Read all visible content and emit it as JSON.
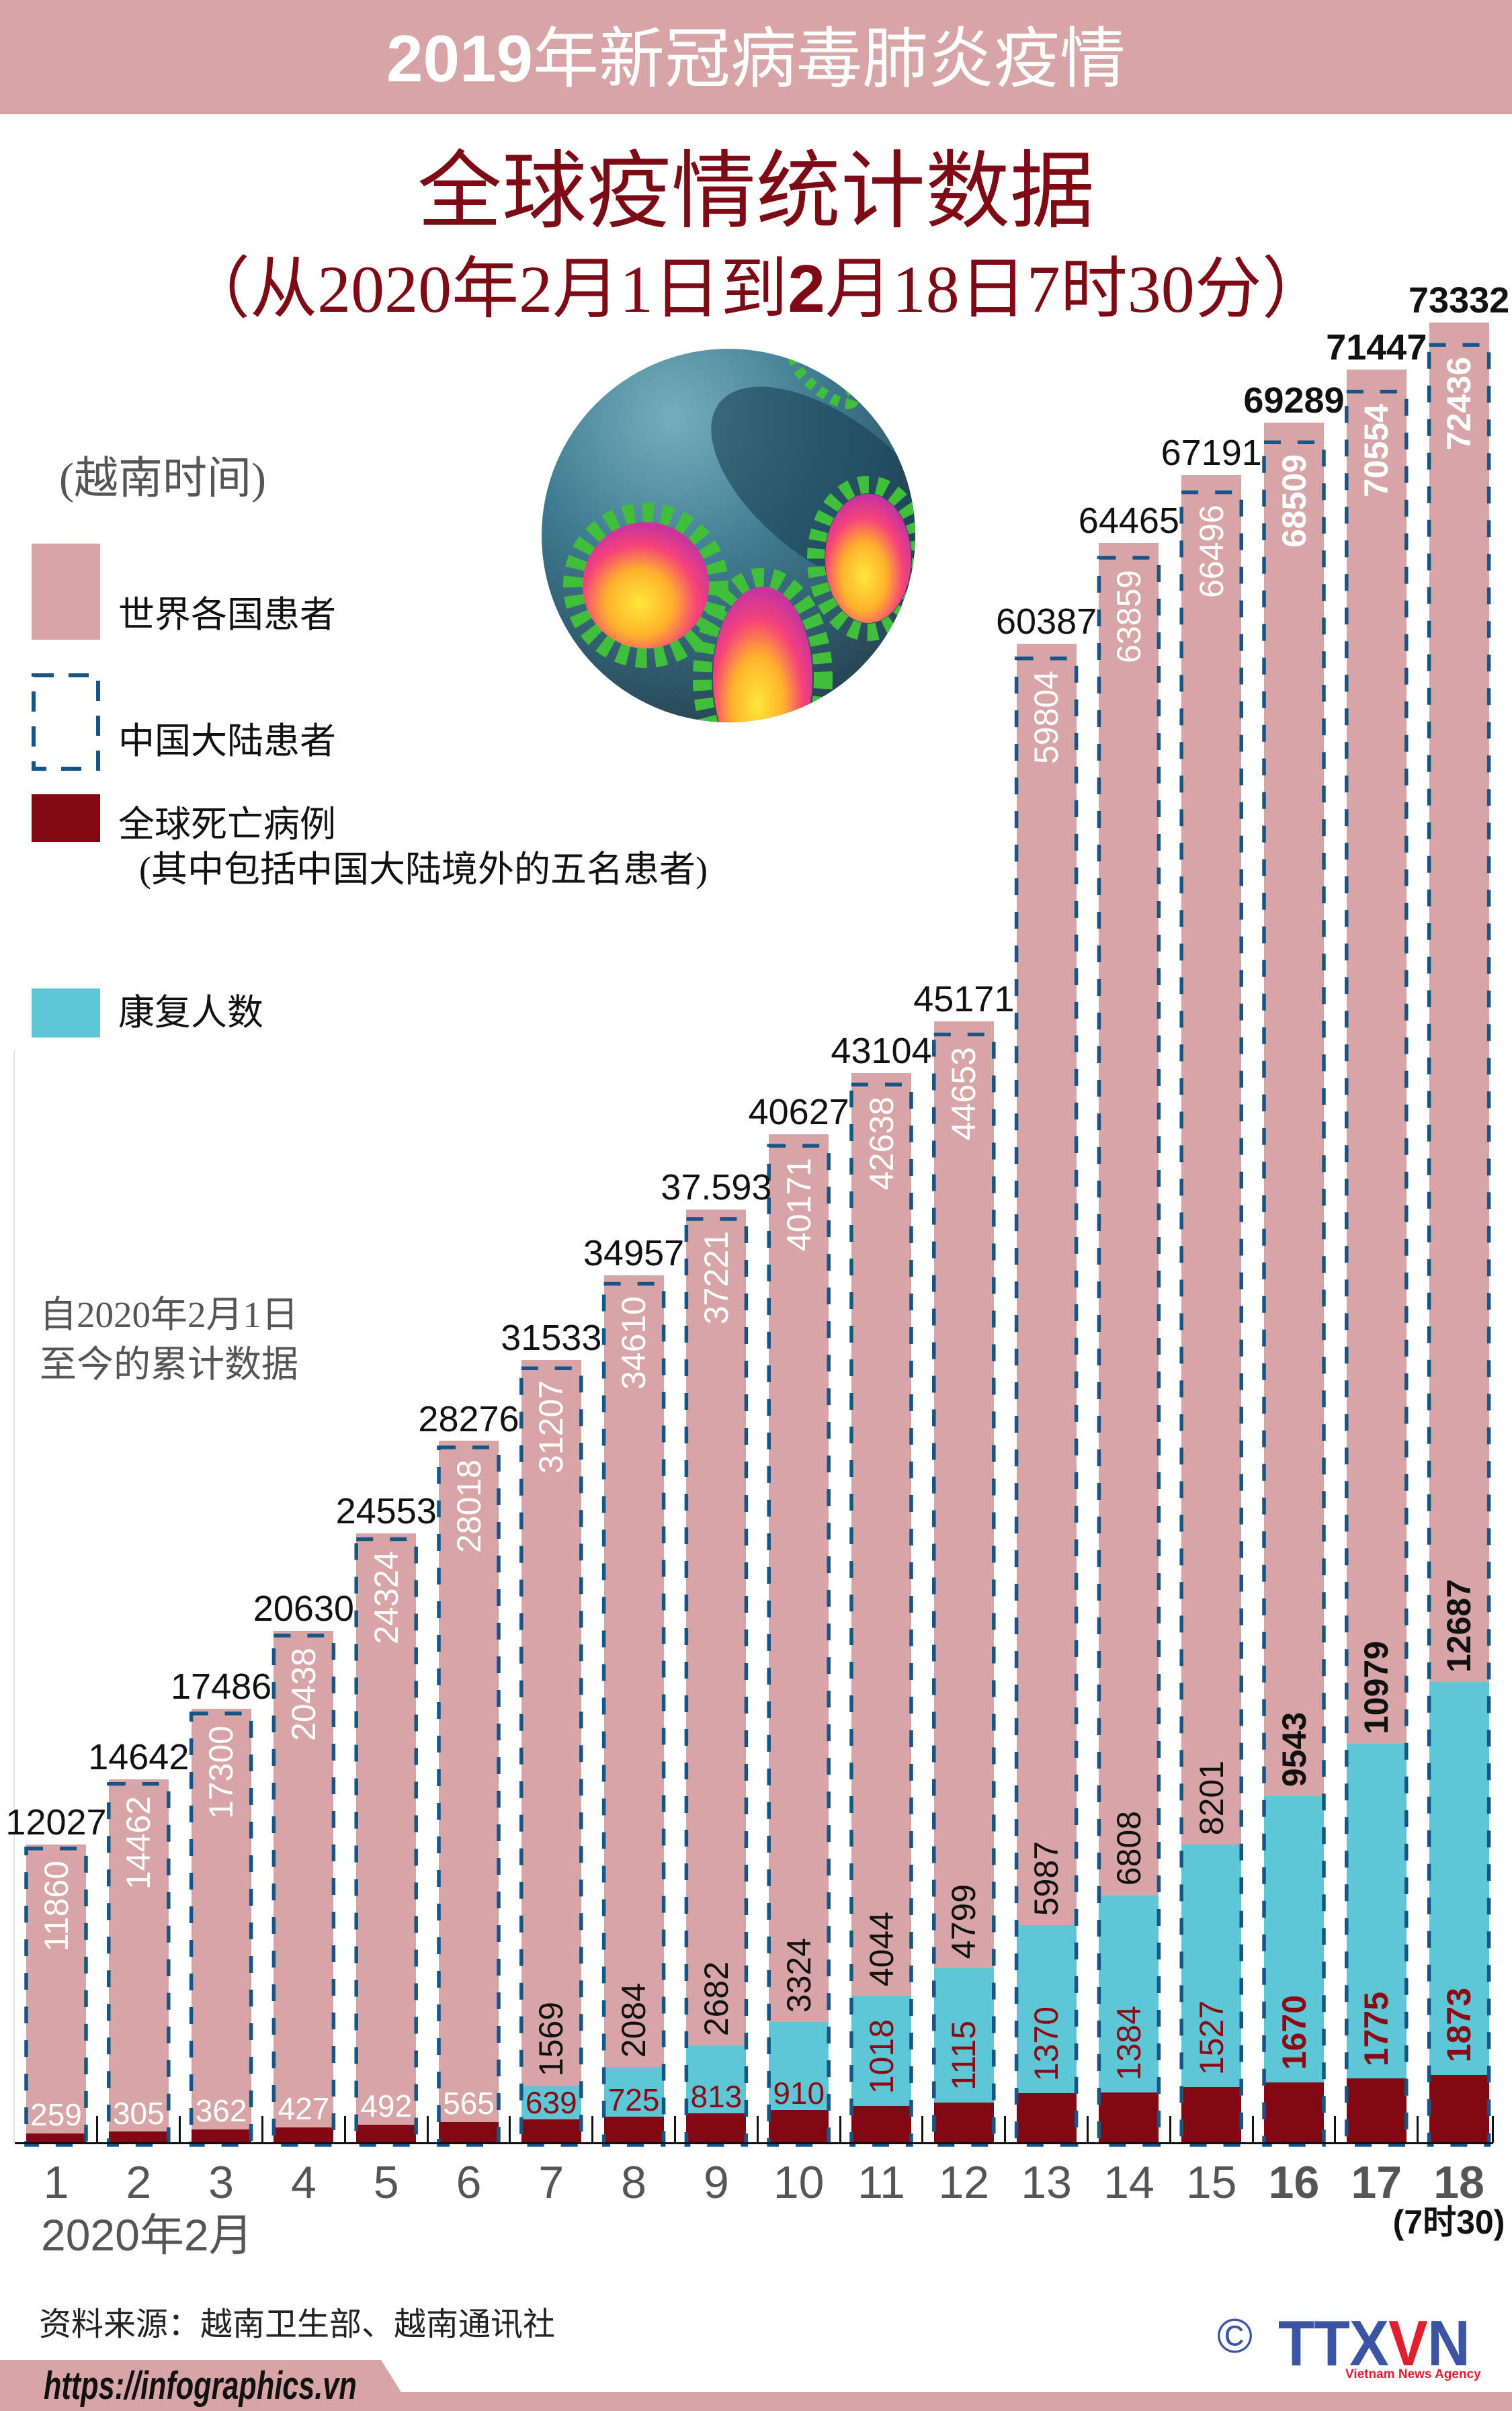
{
  "header": {
    "title_year": "2019",
    "title_rest": "年新冠病毒肺炎疫情"
  },
  "title": {
    "main": "全球疫情统计数据",
    "subtitle_part1": "（从2020年2月1日到",
    "subtitle_bold": "2",
    "subtitle_part2": "月18日7时30分）"
  },
  "timezone_note": "(越南时间)",
  "illustration": "coronavirus-micrograph",
  "legend": [
    {
      "label": "世界各国患者",
      "color": "#D7A5A6",
      "style": "solid"
    },
    {
      "label": "中国大陆患者",
      "color": "#165585",
      "style": "dashed-outline"
    },
    {
      "label": "全球死亡病例",
      "sublabel": "(其中包括中国大陆境外的五名患者)",
      "color": "#820914",
      "style": "solid"
    },
    {
      "label": "康复人数",
      "color": "#5EC7D5",
      "style": "solid"
    }
  ],
  "cumulative_note": {
    "line1": "自2020年2月1日",
    "line2": "至今的累计数据"
  },
  "x_axis": {
    "month_label": "2020年2月",
    "last_day_note": "(7时30)"
  },
  "source": "资料来源：越南卫生部、越南通讯社",
  "footer": {
    "url": "https://infographics.vn",
    "copyright_symbol": "©",
    "logo_text_part1": "TTX",
    "logo_text_v": "V",
    "logo_text_part2": "N",
    "logo_tagline": "Vietnam News Agency"
  },
  "colors": {
    "header_band": "#D7A5A6",
    "title": "#7D0A14",
    "world_cases": "#D7A5A6",
    "china_outline": "#165585",
    "deaths": "#820914",
    "recovered": "#5EC7D5",
    "logo_blue": "#3B55A4",
    "logo_red": "#E0202E"
  },
  "chart_data": {
    "type": "bar",
    "title": "全球疫情统计数据",
    "subtitle": "（从2020年2月1日到2月18日7时30分）",
    "xlabel": "2020年2月",
    "ylabel": "",
    "grid": false,
    "legend_position": "top-left",
    "categories": [
      "1",
      "2",
      "3",
      "4",
      "5",
      "6",
      "7",
      "8",
      "9",
      "10",
      "11",
      "12",
      "13",
      "14",
      "15",
      "16",
      "17",
      "18"
    ],
    "highlight_categories": [
      "16",
      "17",
      "18"
    ],
    "series": [
      {
        "name": "世界各国患者",
        "values": [
          12027,
          14642,
          17486,
          20630,
          24553,
          28276,
          31533,
          34957,
          37593,
          40627,
          43104,
          45171,
          60387,
          64465,
          67191,
          69289,
          71447,
          73332
        ]
      },
      {
        "name": "中国大陆患者",
        "values": [
          11860,
          14462,
          17300,
          20438,
          24324,
          28018,
          31207,
          34610,
          37221,
          40171,
          42638,
          44653,
          59804,
          63859,
          66496,
          68509,
          70554,
          72436
        ]
      },
      {
        "name": "康复人数",
        "values": [
          null,
          null,
          null,
          null,
          null,
          null,
          1569,
          2084,
          2682,
          3324,
          4044,
          4799,
          5987,
          6808,
          8201,
          9543,
          10979,
          12687
        ]
      },
      {
        "name": "全球死亡病例",
        "values": [
          259,
          305,
          362,
          427,
          492,
          565,
          639,
          725,
          813,
          910,
          1018,
          1115,
          1370,
          1384,
          1527,
          1670,
          1775,
          1873
        ]
      }
    ],
    "total_labels": [
      "12027",
      "14642",
      "17486",
      "20630",
      "24553",
      "28276",
      "31533",
      "34957",
      "37.593",
      "40627",
      "43104",
      "45171",
      "60387",
      "64465",
      "67191",
      "69289",
      "71447",
      "73332"
    ],
    "annotations": [
      "自2020年2月1日至今的累计数据",
      "(7时30)"
    ]
  }
}
